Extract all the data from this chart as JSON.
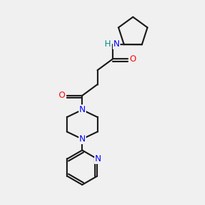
{
  "bg_color": "#f0f0f0",
  "bond_color": "#1a1a1a",
  "N_color": "#0000ff",
  "NH_color": "#008b8b",
  "O_color": "#ff0000",
  "line_width": 1.6,
  "figsize": [
    3.0,
    3.0
  ],
  "dpi": 100,
  "xlim": [
    0,
    10
  ],
  "ylim": [
    0,
    10
  ]
}
